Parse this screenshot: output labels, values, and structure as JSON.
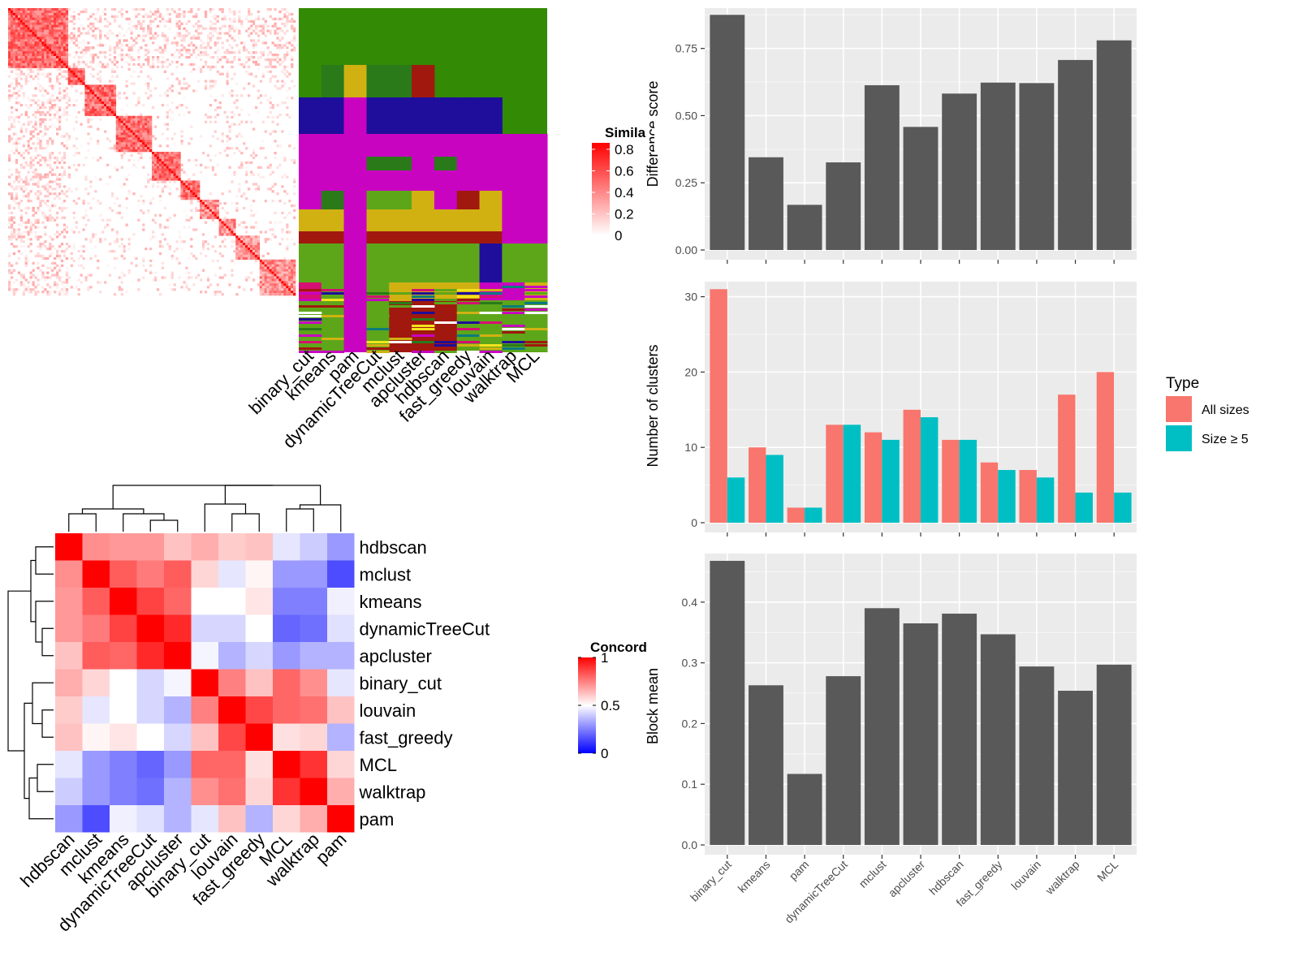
{
  "similarity_heatmap": {
    "legend_title": "Simila",
    "legend_ticks": [
      "0.8",
      "0.6",
      "0.4",
      "0.2",
      "0"
    ],
    "legend_tick_values": [
      0.8,
      0.6,
      0.4,
      0.2,
      0
    ],
    "colors": {
      "high": "#ff0000",
      "low": "#ffffff"
    }
  },
  "cluster_annotation": {
    "columns": [
      "binary_cut",
      "kmeans",
      "pam",
      "dynamicTreeCut",
      "mclust",
      "apcluster",
      "hdbscan",
      "fast_greedy",
      "louvain",
      "walktrap",
      "MCL"
    ]
  },
  "concordance": {
    "legend_title": "Concord",
    "legend_ticks": [
      "1",
      "0.5",
      "0"
    ],
    "legend_tick_values": [
      1,
      0.5,
      0
    ],
    "colors": {
      "high": "#ff0000",
      "mid": "#ffffff",
      "low": "#0000ff"
    },
    "order": [
      "hdbscan",
      "mclust",
      "kmeans",
      "dynamicTreeCut",
      "apcluster",
      "binary_cut",
      "louvain",
      "fast_greedy",
      "MCL",
      "walktrap",
      "pam"
    ]
  },
  "chart_data": [
    {
      "type": "heatmap",
      "rows": [
        "hdbscan",
        "mclust",
        "kmeans",
        "dynamicTreeCut",
        "apcluster",
        "binary_cut",
        "louvain",
        "fast_greedy",
        "MCL",
        "walktrap",
        "pam"
      ],
      "columns": [
        "hdbscan",
        "mclust",
        "kmeans",
        "dynamicTreeCut",
        "apcluster",
        "binary_cut",
        "louvain",
        "fast_greedy",
        "MCL",
        "walktrap",
        "pam"
      ],
      "values": [
        [
          1.0,
          0.72,
          0.7,
          0.7,
          0.62,
          0.66,
          0.6,
          0.62,
          0.45,
          0.4,
          0.3
        ],
        [
          0.72,
          1.0,
          0.82,
          0.76,
          0.82,
          0.58,
          0.45,
          0.52,
          0.3,
          0.3,
          0.15
        ],
        [
          0.7,
          0.82,
          1.0,
          0.87,
          0.8,
          0.5,
          0.5,
          0.55,
          0.25,
          0.25,
          0.47
        ],
        [
          0.7,
          0.76,
          0.87,
          1.0,
          0.92,
          0.42,
          0.42,
          0.5,
          0.2,
          0.22,
          0.44
        ],
        [
          0.62,
          0.82,
          0.8,
          0.92,
          1.0,
          0.48,
          0.35,
          0.42,
          0.3,
          0.35,
          0.35
        ],
        [
          0.66,
          0.58,
          0.5,
          0.42,
          0.48,
          1.0,
          0.75,
          0.62,
          0.8,
          0.72,
          0.45
        ],
        [
          0.6,
          0.45,
          0.5,
          0.42,
          0.35,
          0.75,
          1.0,
          0.86,
          0.8,
          0.78,
          0.62
        ],
        [
          0.62,
          0.52,
          0.55,
          0.5,
          0.42,
          0.62,
          0.86,
          1.0,
          0.56,
          0.58,
          0.35
        ],
        [
          0.45,
          0.3,
          0.25,
          0.2,
          0.3,
          0.8,
          0.8,
          0.56,
          1.0,
          0.9,
          0.58
        ],
        [
          0.4,
          0.3,
          0.25,
          0.22,
          0.35,
          0.72,
          0.78,
          0.58,
          0.9,
          1.0,
          0.66
        ],
        [
          0.3,
          0.15,
          0.47,
          0.44,
          0.35,
          0.45,
          0.62,
          0.35,
          0.58,
          0.66,
          1.0
        ]
      ],
      "legend_title": "Concord",
      "range": [
        0,
        1
      ]
    },
    {
      "type": "bar",
      "categories": [
        "binary_cut",
        "kmeans",
        "pam",
        "dynamicTreeCut",
        "mclust",
        "apcluster",
        "hdbscan",
        "fast_greedy",
        "louvain",
        "walktrap",
        "MCL"
      ],
      "values": [
        0.875,
        0.345,
        0.168,
        0.326,
        0.613,
        0.458,
        0.582,
        0.623,
        0.621,
        0.707,
        0.78
      ],
      "ylabel": "Difference score",
      "ylim": [
        0,
        0.9
      ],
      "yticks": [
        0.0,
        0.25,
        0.5,
        0.75
      ],
      "ytick_labels": [
        "0.00",
        "0.25",
        "0.50",
        "0.75"
      ],
      "bar_color": "#595959",
      "grid": true
    },
    {
      "type": "bar",
      "categories": [
        "binary_cut",
        "kmeans",
        "pam",
        "dynamicTreeCut",
        "mclust",
        "apcluster",
        "hdbscan",
        "fast_greedy",
        "louvain",
        "walktrap",
        "MCL"
      ],
      "series": [
        {
          "name": "All sizes",
          "values": [
            31,
            10,
            2,
            13,
            12,
            15,
            11,
            8,
            7,
            17,
            20
          ],
          "color": "#f8766d"
        },
        {
          "name": "Size ≥ 5",
          "values": [
            6,
            9,
            2,
            13,
            11,
            14,
            11,
            7,
            6,
            4,
            4
          ],
          "color": "#00bfc4"
        }
      ],
      "ylabel": "Number of clusters",
      "ylim": [
        0,
        32
      ],
      "yticks": [
        0,
        10,
        20,
        30
      ],
      "ytick_labels": [
        "0",
        "10",
        "20",
        "30"
      ],
      "legend_title": "Type",
      "legend_placement": "right",
      "grid": true
    },
    {
      "type": "bar",
      "categories": [
        "binary_cut",
        "kmeans",
        "pam",
        "dynamicTreeCut",
        "mclust",
        "apcluster",
        "hdbscan",
        "fast_greedy",
        "louvain",
        "walktrap",
        "MCL"
      ],
      "values": [
        0.468,
        0.263,
        0.117,
        0.278,
        0.39,
        0.365,
        0.381,
        0.347,
        0.294,
        0.254,
        0.297
      ],
      "ylabel": "Block mean",
      "ylim": [
        0,
        0.48
      ],
      "yticks": [
        0.0,
        0.1,
        0.2,
        0.3,
        0.4
      ],
      "ytick_labels": [
        "0.0",
        "0.1",
        "0.2",
        "0.3",
        "0.4"
      ],
      "bar_color": "#595959",
      "grid": true
    }
  ]
}
